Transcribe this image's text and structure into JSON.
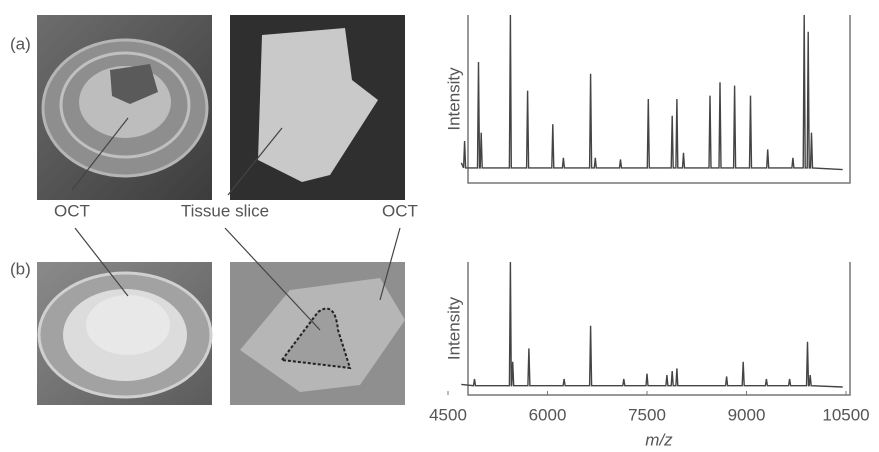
{
  "labels": {
    "panel_a": "(a)",
    "panel_b": "(b)",
    "oct_left": "OCT",
    "tissue_slice": "Tissue slice",
    "oct_right": "OCT"
  },
  "chart_data": [
    {
      "type": "line",
      "y_label": "Intensity",
      "color": "#444",
      "xlim": [
        4500,
        10500
      ],
      "ylim": [
        0,
        100
      ],
      "x": [
        4700,
        4735,
        4750,
        4765,
        4945,
        4960,
        4975,
        4985,
        5000,
        5015,
        5425,
        5440,
        5455,
        5685,
        5700,
        5715,
        6065,
        6080,
        6095,
        6225,
        6240,
        6255,
        6635,
        6650,
        6665,
        6705,
        6720,
        6735,
        7085,
        7100,
        7115,
        7505,
        7520,
        7535,
        7865,
        7880,
        7895,
        7935,
        7950,
        7965,
        8035,
        8050,
        8065,
        8435,
        8450,
        8465,
        8585,
        8600,
        8615,
        8805,
        8820,
        8835,
        9045,
        9060,
        9075,
        9305,
        9320,
        9335,
        9685,
        9700,
        9715,
        9855,
        9870,
        9885,
        9915,
        9930,
        9945,
        9965,
        9980,
        9995,
        10450
      ],
      "values": [
        12,
        9,
        25,
        9,
        9,
        72,
        9,
        9,
        30,
        9,
        9,
        100,
        9,
        9,
        55,
        9,
        9,
        35,
        9,
        9,
        15,
        9,
        9,
        65,
        9,
        9,
        15,
        9,
        9,
        14,
        9,
        9,
        50,
        9,
        9,
        40,
        9,
        9,
        50,
        9,
        9,
        18,
        9,
        9,
        52,
        9,
        9,
        60,
        9,
        9,
        58,
        9,
        9,
        52,
        9,
        9,
        20,
        9,
        9,
        15,
        9,
        9,
        100,
        9,
        9,
        90,
        9,
        9,
        30,
        9,
        8
      ]
    },
    {
      "type": "line",
      "y_label": "Intensity",
      "x_label": "m/z",
      "color": "#444",
      "xlim": [
        4500,
        10500
      ],
      "ylim": [
        0,
        100
      ],
      "xticks": [
        4500,
        6000,
        7500,
        9000,
        10500
      ],
      "x": [
        4700,
        4885,
        4900,
        4915,
        5425,
        5440,
        5455,
        5460,
        5475,
        5490,
        5705,
        5720,
        5735,
        6235,
        6250,
        6265,
        6635,
        6650,
        6665,
        7135,
        7150,
        7165,
        7485,
        7500,
        7515,
        7785,
        7800,
        7815,
        7865,
        7880,
        7895,
        7935,
        7950,
        7965,
        8685,
        8700,
        8715,
        8935,
        8950,
        8965,
        9285,
        9300,
        9315,
        9635,
        9650,
        9665,
        9905,
        9920,
        9935,
        9945,
        9960,
        9975,
        10450
      ],
      "values": [
        8,
        7,
        12,
        7,
        7,
        100,
        7,
        7,
        25,
        7,
        7,
        35,
        7,
        7,
        12,
        7,
        7,
        52,
        7,
        7,
        12,
        7,
        7,
        16,
        7,
        7,
        15,
        7,
        7,
        18,
        7,
        7,
        20,
        7,
        7,
        14,
        7,
        7,
        25,
        7,
        7,
        12,
        7,
        7,
        12,
        7,
        7,
        40,
        7,
        7,
        15,
        7,
        6
      ]
    }
  ]
}
